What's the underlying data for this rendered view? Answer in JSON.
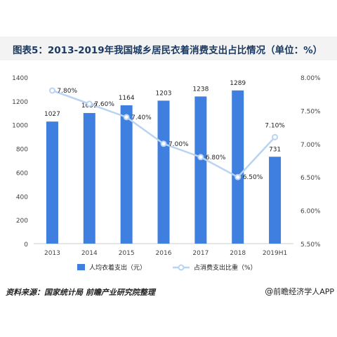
{
  "header": {
    "title": "图表5：2013-2019年我国城乡居民衣着消费支出占比情况（单位：%）"
  },
  "footer": {
    "source": "资料来源：国家统计局  前瞻产业研究院整理",
    "brand_symbol": "@",
    "brand": "前瞻经济学人APP"
  },
  "colors": {
    "bar": "#3f7fe0",
    "line": "#b9d3f3",
    "marker_fill": "#ffffff",
    "axis_text": "#444444",
    "axis_line": "#cccccc"
  },
  "chart_data": {
    "type": "bar+line",
    "categories": [
      "2013",
      "2014",
      "2015",
      "2016",
      "2017",
      "2018",
      "2019H1"
    ],
    "series": [
      {
        "name": "人均衣着支出（元）",
        "type": "bar",
        "axis": "left",
        "values": [
          1027,
          1099,
          1164,
          1203,
          1238,
          1289,
          731
        ],
        "labels": [
          "1027",
          "1099",
          "1164",
          "1203",
          "1238",
          "1289",
          "731"
        ]
      },
      {
        "name": "占消费支出比重（%）",
        "type": "line",
        "axis": "right",
        "values": [
          7.8,
          7.6,
          7.4,
          7.0,
          6.8,
          6.5,
          7.1
        ],
        "labels": [
          "7.80%",
          "7.60%",
          "7.40%",
          "7.00%",
          "6.80%",
          "6.50%",
          "7.10%"
        ]
      }
    ],
    "y_left": {
      "ylim": [
        0,
        1400
      ],
      "ticks": [
        0,
        200,
        400,
        600,
        800,
        1000,
        1200,
        1400
      ],
      "tick_labels": [
        "0",
        "200",
        "400",
        "600",
        "800",
        "1000",
        "1200",
        "1400"
      ]
    },
    "y_right": {
      "ylim": [
        5.5,
        8.0
      ],
      "ticks": [
        5.5,
        6.0,
        6.5,
        7.0,
        7.5,
        8.0
      ],
      "tick_labels": [
        "5.50%",
        "6.00%",
        "6.50%",
        "7.00%",
        "7.50%",
        "8.00%"
      ]
    },
    "grid": false,
    "legend_position": "bottom"
  }
}
